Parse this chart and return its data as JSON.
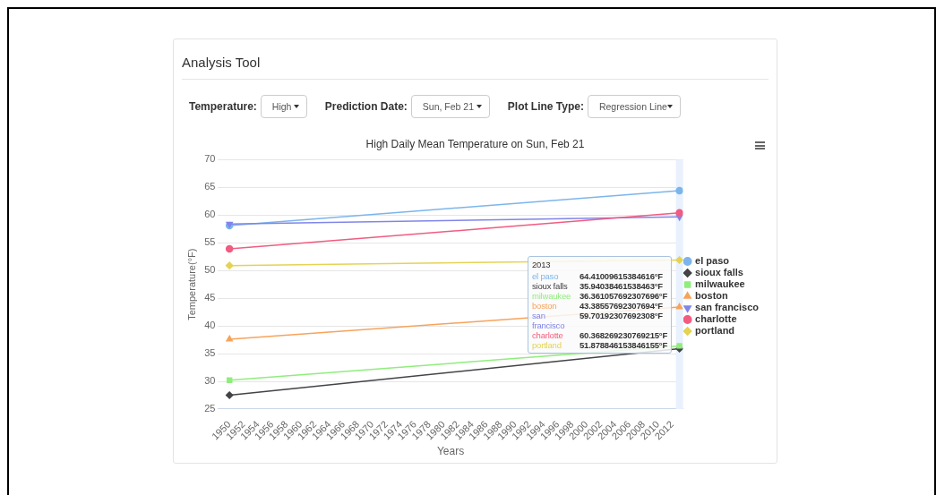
{
  "chart_data": {
    "type": "line",
    "title": "High Daily Mean Temperature on Sun, Feb 21",
    "xlabel": "Years",
    "ylabel": "Temperature(°F)",
    "x": [
      1950,
      2013
    ],
    "xlim": [
      1948.4,
      2013.5
    ],
    "xticks": [
      1950,
      1952,
      1954,
      1956,
      1958,
      1960,
      1962,
      1964,
      1966,
      1968,
      1970,
      1972,
      1974,
      1976,
      1978,
      1980,
      1982,
      1984,
      1986,
      1988,
      1990,
      1992,
      1994,
      1996,
      1998,
      2000,
      2002,
      2004,
      2006,
      2008,
      2010,
      2012
    ],
    "ylim": [
      25,
      70
    ],
    "yticks": [
      25,
      30,
      35,
      40,
      45,
      50,
      55,
      60,
      65,
      70
    ],
    "grid": "y",
    "legend": "right",
    "line_style": "solid",
    "bands": [
      {
        "axis": "x",
        "from": 2012.5,
        "to": 2013.5,
        "color": "#e8f1fd"
      }
    ],
    "annotations": [
      "Analysis Tool",
      "Temperature:",
      "High",
      "Prediction Date:",
      "Sun, Feb 21",
      "Plot Line Type:",
      "Regression Line",
      "2013",
      "64.41009615384616°F",
      "35.94038461538463°F",
      "36.361057692307696°F",
      "43.38557692307694°F",
      "59.70192307692308°F",
      "60.368269230769215°F",
      "51.878846153846155°F"
    ],
    "series": [
      {
        "name": "el paso",
        "color": "#7cb5ec",
        "marker": "circle",
        "values": [
          58.1,
          64.4
        ]
      },
      {
        "name": "sioux falls",
        "color": "#434348",
        "marker": "diamond",
        "values": [
          27.5,
          35.9
        ]
      },
      {
        "name": "milwaukee",
        "color": "#90ed7d",
        "marker": "square",
        "values": [
          30.2,
          36.4
        ]
      },
      {
        "name": "boston",
        "color": "#f7a35c",
        "marker": "triangle",
        "values": [
          37.6,
          43.4
        ]
      },
      {
        "name": "san francisco",
        "color": "#8085e9",
        "marker": "triangle-down",
        "values": [
          58.4,
          59.7
        ]
      },
      {
        "name": "charlotte",
        "color": "#f15c80",
        "marker": "circle",
        "values": [
          53.9,
          60.4
        ]
      },
      {
        "name": "portland",
        "color": "#e4d354",
        "marker": "diamond",
        "values": [
          50.9,
          51.9
        ]
      }
    ]
  }
}
